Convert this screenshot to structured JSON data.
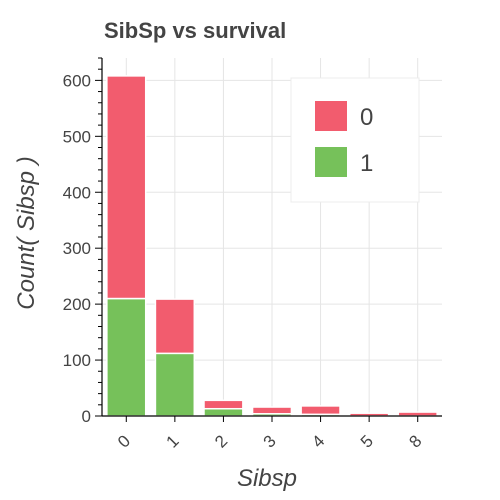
{
  "chart_data": {
    "type": "bar",
    "stacked": true,
    "title": "SibSp vs survival",
    "xlabel": "Sibsp",
    "ylabel": "Count( Sibsp )",
    "categories": [
      "0",
      "1",
      "2",
      "3",
      "4",
      "5",
      "8"
    ],
    "series": [
      {
        "name": "0",
        "color": "#f25c6e",
        "values": [
          398,
          97,
          15,
          12,
          15,
          5,
          7
        ]
      },
      {
        "name": "1",
        "color": "#76c15a",
        "values": [
          210,
          112,
          13,
          4,
          3,
          0,
          0
        ]
      }
    ],
    "stack_order": [
      "1",
      "0"
    ],
    "ylim": [
      0,
      640
    ],
    "yticks": [
      0,
      100,
      200,
      300,
      400,
      500,
      600
    ],
    "grid": true,
    "legend_position": "top-right",
    "x_tick_rotation_deg": -45
  }
}
